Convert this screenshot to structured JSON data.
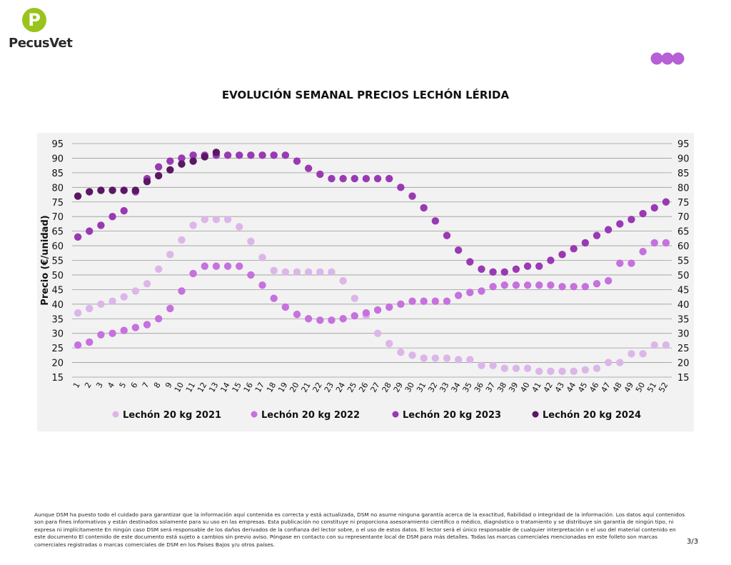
{
  "brand": {
    "name": "PecusVet",
    "logo_letter": "P"
  },
  "colors": {
    "s2021": "#dcb6e8",
    "s2022": "#c671de",
    "s2023": "#9a39b4",
    "s2024": "#5a1763",
    "grid": "#9a9a9a",
    "panel": "#f2f2f2",
    "dots": "#b65fd6",
    "logo_green": "#9ac31c"
  },
  "footer": {
    "disclaimer": "Aunque DSM ha puesto todo el cuidado para garantizar que la información aquí contenida es correcta y está actualizada, DSM no asume ninguna garantía acerca de la exactitud, fiabilidad o integridad de la información. Los datos aquí contenidos son para fines informativos y están destinados solamente para su uso en las empresas. Esta publicación no constituye ni proporciona asesoramiento científico o médico, diagnóstico o tratamiento y se distribuye sin garantía de ningún tipo, ni expresa ni implícitamente En ningún caso DSM será responsable de los daños derivados de la confianza del lector sobre, o el uso de estos datos. El lector será el único responsable de cualquier interpretación o el uso del material contenido en este documento El contenido de este documento está sujeto a cambios sin previo aviso. Póngase en contacto con su representante local de DSM para más detalles. Todas las marcas comerciales mencionadas en este folleto son marcas comerciales registradas o marcas comerciales de DSM en los Países Bajos y/u otros países.",
    "page": "3/3"
  },
  "chart_data": {
    "type": "scatter",
    "title": "EVOLUCIÓN SEMANAL PRECIOS LECHÓN LÉRIDA",
    "ylabel": "Precio (€/unidad)",
    "xlabel": "",
    "ylim": [
      15,
      95
    ],
    "yticks": [
      15,
      20,
      25,
      30,
      35,
      40,
      45,
      50,
      55,
      60,
      65,
      70,
      75,
      80,
      85,
      90,
      95
    ],
    "x": [
      1,
      2,
      3,
      4,
      5,
      6,
      7,
      8,
      9,
      10,
      11,
      12,
      13,
      14,
      15,
      16,
      17,
      18,
      19,
      20,
      21,
      22,
      23,
      24,
      25,
      26,
      27,
      28,
      29,
      30,
      31,
      32,
      33,
      34,
      35,
      36,
      37,
      38,
      39,
      40,
      41,
      42,
      43,
      44,
      45,
      46,
      47,
      48,
      49,
      50,
      51,
      52
    ],
    "grid": true,
    "legend_position": "bottom",
    "series": [
      {
        "name": "Lechón 20 kg 2021",
        "color_key": "s2021",
        "values": [
          37,
          38.5,
          40,
          41,
          42.5,
          44.5,
          47,
          52,
          57,
          62,
          67,
          69,
          69,
          69,
          66.5,
          61.5,
          56,
          51.5,
          51,
          51,
          51,
          51,
          51,
          48,
          42,
          36,
          30,
          26.5,
          23.5,
          22.5,
          21.5,
          21.5,
          21.5,
          21,
          21,
          19,
          19,
          18,
          18,
          18,
          17,
          17,
          17,
          17,
          17.5,
          18,
          20,
          20,
          23,
          23,
          26,
          26
        ]
      },
      {
        "name": "Lechón 20 kg 2022",
        "color_key": "s2022",
        "values": [
          26,
          27,
          29.5,
          30,
          31,
          32,
          33,
          35,
          38.5,
          44.5,
          50.5,
          53,
          53,
          53,
          53,
          50,
          46.5,
          42,
          39,
          36.5,
          35,
          34.5,
          34.5,
          35,
          36,
          37,
          38,
          39,
          40,
          41,
          41,
          41,
          41,
          43,
          44,
          44.5,
          46,
          46.5,
          46.5,
          46.5,
          46.5,
          46.5,
          46,
          46,
          46,
          47,
          48,
          54,
          54,
          58,
          61,
          61
        ]
      },
      {
        "name": "Lechón 20 kg 2023",
        "color_key": "s2023",
        "values": [
          63,
          65,
          67,
          70,
          72,
          78.5,
          83,
          87,
          89,
          90,
          91,
          91,
          91,
          91,
          91,
          91,
          91,
          91,
          91,
          89,
          86.5,
          84.5,
          83,
          83,
          83,
          83,
          83,
          83,
          80,
          77,
          73,
          68.5,
          63.5,
          58.5,
          54.5,
          52,
          51,
          51,
          52,
          53,
          53,
          55,
          57,
          59,
          61,
          63.5,
          65.5,
          67.5,
          69,
          71,
          73,
          75
        ]
      },
      {
        "name": "Lechón 20 kg 2024",
        "color_key": "s2024",
        "values": [
          77,
          78.5,
          79,
          79,
          79,
          79,
          82,
          84,
          86,
          88,
          89,
          90.5,
          92
        ]
      }
    ]
  }
}
